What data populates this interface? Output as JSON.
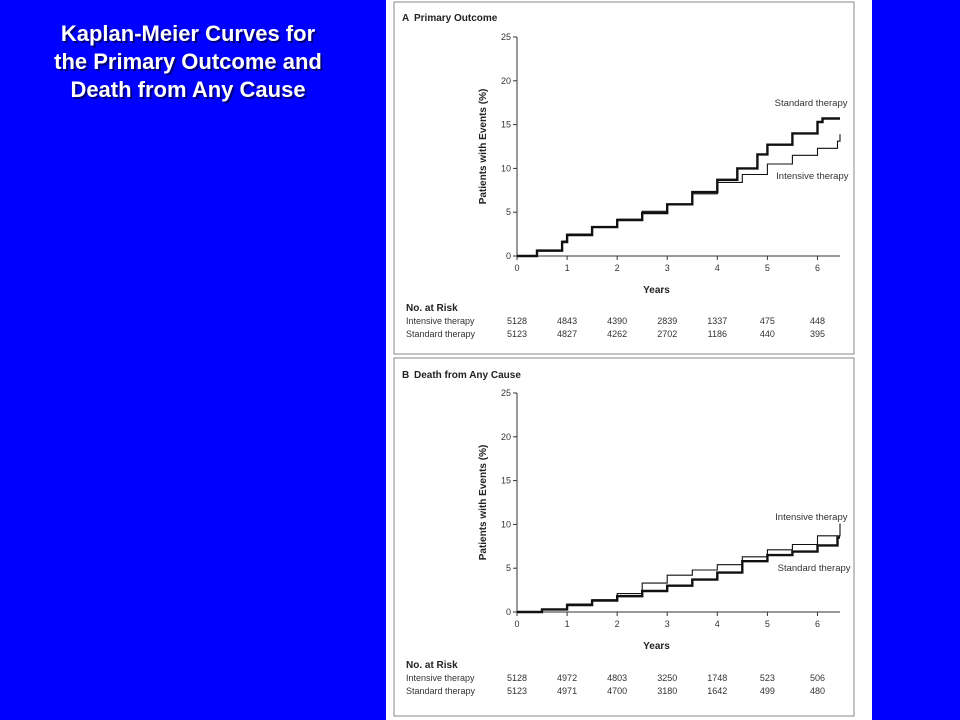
{
  "slide": {
    "title_lines": [
      "Kaplan-Meier Curves for",
      "the Primary Outcome and",
      "Death from Any Cause"
    ],
    "background_color": "#0000ff",
    "title_color": "#ffffff"
  },
  "chart_data": [
    {
      "type": "line",
      "panel_letter": "A",
      "title": "Primary Outcome",
      "xlabel": "Years",
      "ylabel": "Patients with Events (%)",
      "xlim": [
        0,
        6.45
      ],
      "ylim": [
        0,
        25
      ],
      "x_ticks": [
        0,
        1,
        2,
        3,
        4,
        5,
        6
      ],
      "y_ticks": [
        0,
        5,
        10,
        15,
        20,
        25
      ],
      "series": [
        {
          "name": "Standard therapy",
          "style": "thick",
          "points": [
            [
              0,
              0
            ],
            [
              0.4,
              0.6
            ],
            [
              0.9,
              1.6
            ],
            [
              1.0,
              2.4
            ],
            [
              1.5,
              3.3
            ],
            [
              2.0,
              4.1
            ],
            [
              2.5,
              4.9
            ],
            [
              3.0,
              5.9
            ],
            [
              3.5,
              7.3
            ],
            [
              4.0,
              8.7
            ],
            [
              4.4,
              10.0
            ],
            [
              4.8,
              11.6
            ],
            [
              5.0,
              12.7
            ],
            [
              5.5,
              14.0
            ],
            [
              6.0,
              15.3
            ],
            [
              6.1,
              15.7
            ],
            [
              6.45,
              15.7
            ]
          ]
        },
        {
          "name": "Intensive therapy",
          "style": "thin",
          "points": [
            [
              0,
              0
            ],
            [
              0.4,
              0.7
            ],
            [
              0.9,
              1.7
            ],
            [
              1.0,
              2.5
            ],
            [
              1.5,
              3.3
            ],
            [
              2.0,
              4.2
            ],
            [
              2.5,
              5.1
            ],
            [
              3.0,
              5.9
            ],
            [
              3.5,
              7.1
            ],
            [
              4.0,
              8.4
            ],
            [
              4.5,
              9.3
            ],
            [
              5.0,
              10.5
            ],
            [
              5.5,
              11.5
            ],
            [
              6.0,
              12.3
            ],
            [
              6.4,
              13.1
            ],
            [
              6.45,
              13.9
            ]
          ]
        }
      ],
      "curve_labels": [
        {
          "text": "Standard therapy",
          "x": 6.6,
          "y": 17.1
        },
        {
          "text": "Intensive therapy",
          "x": 6.62,
          "y": 8.8
        }
      ],
      "risk_table": {
        "header": "No. at Risk",
        "rows": [
          {
            "label": "Intensive therapy",
            "values": [
              "5128",
              "4843",
              "4390",
              "2839",
              "1337",
              "475",
              "448"
            ]
          },
          {
            "label": "Standard therapy",
            "values": [
              "5123",
              "4827",
              "4262",
              "2702",
              "1186",
              "440",
              "395"
            ]
          }
        ]
      }
    },
    {
      "type": "line",
      "panel_letter": "B",
      "title": "Death from Any Cause",
      "xlabel": "Years",
      "ylabel": "Patients with Events (%)",
      "xlim": [
        0,
        6.45
      ],
      "ylim": [
        0,
        25
      ],
      "x_ticks": [
        0,
        1,
        2,
        3,
        4,
        5,
        6
      ],
      "y_ticks": [
        0,
        5,
        10,
        15,
        20,
        25
      ],
      "series": [
        {
          "name": "Intensive therapy",
          "style": "thin",
          "points": [
            [
              0,
              0
            ],
            [
              0.5,
              0.3
            ],
            [
              1.0,
              0.9
            ],
            [
              1.5,
              1.4
            ],
            [
              2.0,
              2.1
            ],
            [
              2.5,
              3.3
            ],
            [
              3.0,
              4.2
            ],
            [
              3.5,
              4.8
            ],
            [
              4.0,
              5.4
            ],
            [
              4.5,
              6.3
            ],
            [
              5.0,
              7.1
            ],
            [
              5.5,
              7.7
            ],
            [
              6.0,
              8.7
            ],
            [
              6.45,
              10.1
            ]
          ]
        },
        {
          "name": "Standard therapy",
          "style": "thick",
          "points": [
            [
              0,
              0
            ],
            [
              0.5,
              0.3
            ],
            [
              1.0,
              0.8
            ],
            [
              1.5,
              1.3
            ],
            [
              2.0,
              1.8
            ],
            [
              2.5,
              2.4
            ],
            [
              3.0,
              3.0
            ],
            [
              3.5,
              3.7
            ],
            [
              4.0,
              4.5
            ],
            [
              4.5,
              5.8
            ],
            [
              5.0,
              6.5
            ],
            [
              5.5,
              6.9
            ],
            [
              6.0,
              7.6
            ],
            [
              6.4,
              8.5
            ],
            [
              6.45,
              8.5
            ]
          ]
        }
      ],
      "curve_labels": [
        {
          "text": "Intensive therapy",
          "x": 6.6,
          "y": 10.5
        },
        {
          "text": "Standard therapy",
          "x": 6.66,
          "y": 4.7
        }
      ],
      "risk_table": {
        "header": "No. at Risk",
        "rows": [
          {
            "label": "Intensive therapy",
            "values": [
              "5128",
              "4972",
              "4803",
              "3250",
              "1748",
              "523",
              "506"
            ]
          },
          {
            "label": "Standard therapy",
            "values": [
              "5123",
              "4971",
              "4700",
              "3180",
              "1642",
              "499",
              "480"
            ]
          }
        ]
      }
    }
  ]
}
